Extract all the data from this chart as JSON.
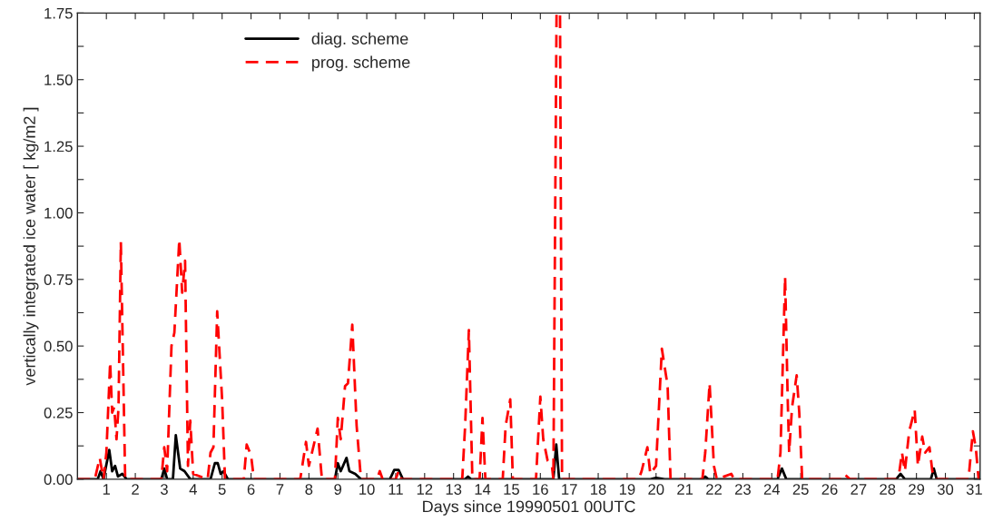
{
  "chart_data": {
    "type": "line",
    "xlabel": "Days since 19990501 00UTC",
    "ylabel": "vertically integrated ice water [ kg/m2 ]",
    "xlim": [
      0,
      31.2
    ],
    "xticks": [
      1,
      2,
      3,
      4,
      5,
      6,
      7,
      8,
      9,
      10,
      11,
      12,
      13,
      14,
      15,
      16,
      17,
      18,
      19,
      20,
      21,
      22,
      23,
      24,
      25,
      26,
      27,
      28,
      29,
      30,
      31
    ],
    "ylim": [
      0,
      1.75
    ],
    "yticks": [
      {
        "value": 0,
        "label": "0.00"
      },
      {
        "value": 0.125,
        "label": null
      },
      {
        "value": 0.25,
        "label": "0.25"
      },
      {
        "value": 0.375,
        "label": null
      },
      {
        "value": 0.5,
        "label": "0.50"
      },
      {
        "value": 0.625,
        "label": null
      },
      {
        "value": 0.75,
        "label": "0.75"
      },
      {
        "value": 0.875,
        "label": null
      },
      {
        "value": 1.0,
        "label": "1.00"
      },
      {
        "value": 1.125,
        "label": null
      },
      {
        "value": 1.25,
        "label": "1.25"
      },
      {
        "value": 1.375,
        "label": null
      },
      {
        "value": 1.5,
        "label": "1.50"
      },
      {
        "value": 1.625,
        "label": null
      },
      {
        "value": 1.75,
        "label": "1.75"
      }
    ],
    "grid": false,
    "legend": "top left",
    "series": [
      {
        "name": "diag. scheme",
        "color": "#000000",
        "line_style": "solid",
        "x": [
          0,
          0.7,
          0.8,
          0.9,
          1.1,
          1.2,
          1.3,
          1.4,
          1.55,
          1.7,
          2.9,
          3.0,
          3.1,
          3.3,
          3.4,
          3.55,
          3.7,
          3.9,
          4.6,
          4.75,
          4.85,
          4.95,
          5.05,
          5.2,
          8.9,
          9.0,
          9.1,
          9.3,
          9.4,
          9.6,
          9.8,
          10.8,
          10.95,
          11.1,
          11.25,
          13.4,
          13.5,
          13.6,
          16.45,
          16.55,
          16.65,
          19.8,
          20.0,
          20.3,
          21.6,
          21.7,
          21.8,
          24.2,
          24.35,
          24.5,
          28.3,
          28.45,
          28.6,
          29.5,
          29.6,
          29.7,
          31.2
        ],
        "values": [
          0,
          0,
          0.03,
          0,
          0.11,
          0.03,
          0.05,
          0.01,
          0.02,
          0,
          0,
          0.04,
          0,
          0,
          0.165,
          0.04,
          0.03,
          0,
          0,
          0.06,
          0.06,
          0.02,
          0.03,
          0,
          0,
          0.06,
          0.03,
          0.08,
          0.03,
          0.02,
          0,
          0,
          0.035,
          0.035,
          0,
          0,
          0.01,
          0,
          0,
          0.13,
          0,
          0,
          0.005,
          0,
          0,
          0.01,
          0,
          0,
          0.04,
          0,
          0,
          0.02,
          0,
          0,
          0.04,
          0,
          0
        ]
      },
      {
        "name": "prog. scheme",
        "color": "#ff0000",
        "line_style": "dashed",
        "x": [
          0,
          0.6,
          0.77,
          0.9,
          1.0,
          1.13,
          1.2,
          1.27,
          1.35,
          1.42,
          1.5,
          1.65,
          2.9,
          3.0,
          3.1,
          3.25,
          3.35,
          3.52,
          3.62,
          3.72,
          3.82,
          3.9,
          4.0,
          4.5,
          4.6,
          4.7,
          4.83,
          5.0,
          5.1,
          5.75,
          5.85,
          6.0,
          6.1,
          7.7,
          7.9,
          8.0,
          8.3,
          8.45,
          8.9,
          9.0,
          9.1,
          9.25,
          9.35,
          9.5,
          9.65,
          9.8,
          10.35,
          10.45,
          10.55,
          11.0,
          11.1,
          11.2,
          13.3,
          13.4,
          13.53,
          13.65,
          13.9,
          14.0,
          14.1,
          14.7,
          14.8,
          14.96,
          15.05,
          15.85,
          16.0,
          16.1,
          16.25,
          16.4,
          16.45,
          16.56,
          16.68,
          16.75,
          19.4,
          19.5,
          19.7,
          19.8,
          20.0,
          20.2,
          20.3,
          20.4,
          20.5,
          21.6,
          21.7,
          21.85,
          22.0,
          22.1,
          22.6,
          22.7,
          24.2,
          24.3,
          24.46,
          24.55,
          24.6,
          24.7,
          24.86,
          24.95,
          25.05,
          26.4,
          26.5,
          26.7,
          28.3,
          28.4,
          28.5,
          28.6,
          28.75,
          28.94,
          29.05,
          29.2,
          29.3,
          29.45,
          29.55,
          29.65,
          30.8,
          30.95,
          31.05,
          31.15
        ],
        "values": [
          0,
          0,
          0.08,
          0,
          0.1,
          0.44,
          0.25,
          0.27,
          0.15,
          0.27,
          0.89,
          0,
          0,
          0.12,
          0.03,
          0.5,
          0.55,
          0.9,
          0.7,
          0.82,
          0.05,
          0.22,
          0.02,
          0,
          0.1,
          0.12,
          0.63,
          0.3,
          0,
          0,
          0.13,
          0.09,
          0,
          0,
          0.14,
          0.05,
          0.19,
          0,
          0,
          0.23,
          0.15,
          0.35,
          0.36,
          0.58,
          0.2,
          0,
          0,
          0.03,
          0,
          0,
          0.03,
          0,
          0,
          0.2,
          0.56,
          0,
          0,
          0.23,
          0,
          0,
          0.2,
          0.3,
          0,
          0,
          0.31,
          0.15,
          0.07,
          0.05,
          0,
          1.75,
          1.75,
          0,
          0,
          0.03,
          0.12,
          0.02,
          0.05,
          0.49,
          0.42,
          0.35,
          0,
          0,
          0.1,
          0.36,
          0.05,
          0,
          0.02,
          0,
          0,
          0.1,
          0.76,
          0.3,
          0.1,
          0.27,
          0.39,
          0.25,
          0,
          0,
          0.02,
          0,
          0,
          0.02,
          0.1,
          0.03,
          0.18,
          0.26,
          0.05,
          0.16,
          0.1,
          0.12,
          0.03,
          0,
          0,
          0.18,
          0.12,
          0
        ]
      }
    ]
  }
}
